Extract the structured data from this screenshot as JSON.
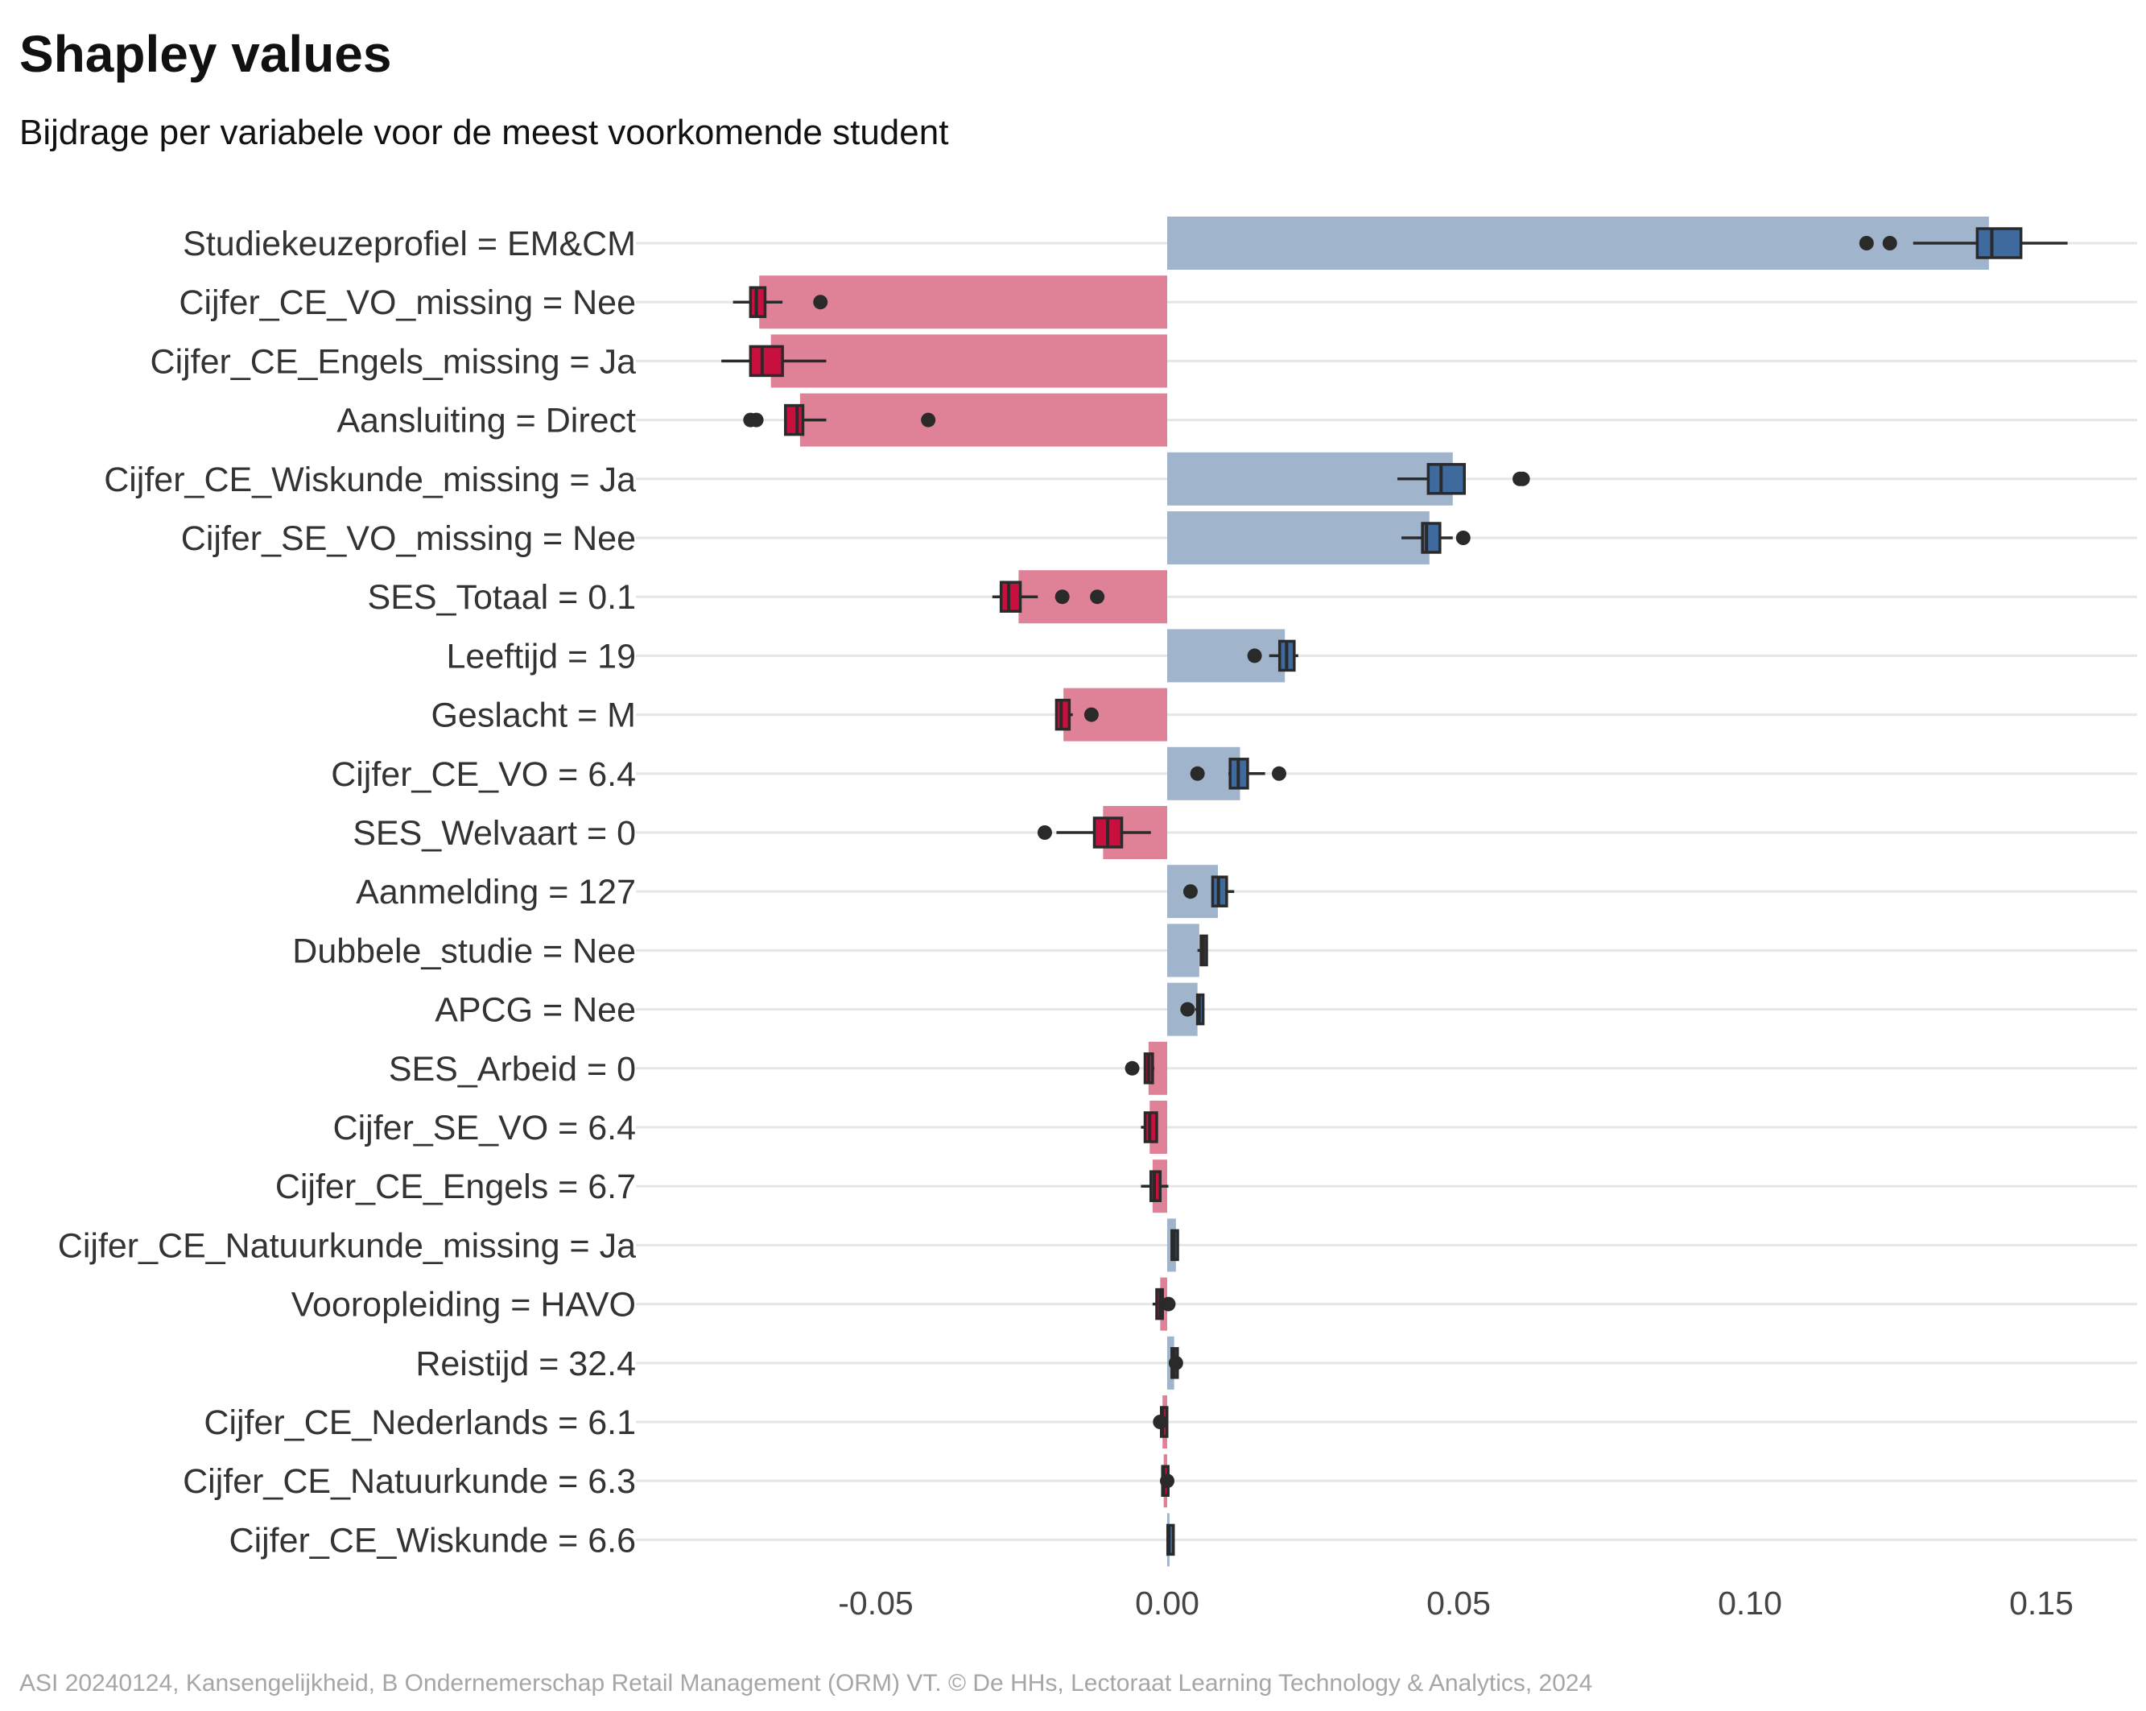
{
  "title": "Shapley values",
  "subtitle": "Bijdrage per variabele voor de meest voorkomende student",
  "caption": "ASI 20240124, Kansengelijkheid, B Ondernemerschap Retail Management (ORM) VT. © De HHs, Lectoraat Learning Technology & Analytics, 2024",
  "colors": {
    "positive_bar": "#a0b4cc",
    "negative_bar": "#e08297",
    "positive_box": "#3f6a9e",
    "negative_box": "#c8103e",
    "grid": "#e6e6e6",
    "outline": "#2a2a2a"
  },
  "chart_data": {
    "type": "bar",
    "orientation": "horizontal",
    "title": "Shapley values",
    "subtitle": "Bijdrage per variabele voor de meest voorkomende student",
    "xlabel": "",
    "ylabel": "",
    "xlim": [
      -0.09,
      0.165
    ],
    "xticks": [
      -0.05,
      0.0,
      0.05,
      0.1,
      0.15
    ],
    "xtick_labels": [
      "-0.05",
      "0.00",
      "0.05",
      "0.10",
      "0.15"
    ],
    "grid": "horizontal-major",
    "legend": "none",
    "rows": [
      {
        "label": "Studiekeuzeprofiel = EM&CM",
        "value": 0.141,
        "box": {
          "wlo": 0.128,
          "q1": 0.139,
          "med": 0.1415,
          "q3": 0.1465,
          "whi": 0.1545
        },
        "outliers": [
          0.12,
          0.124
        ]
      },
      {
        "label": "Cijfer_CE_VO_missing = Nee",
        "value": -0.07,
        "box": {
          "wlo": -0.0745,
          "q1": -0.0715,
          "med": -0.0705,
          "q3": -0.069,
          "whi": -0.066
        },
        "outliers": [
          -0.0595
        ]
      },
      {
        "label": "Cijfer_CE_Engels_missing = Ja",
        "value": -0.068,
        "box": {
          "wlo": -0.0765,
          "q1": -0.0715,
          "med": -0.0695,
          "q3": -0.066,
          "whi": -0.0585
        },
        "outliers": []
      },
      {
        "label": "Aansluiting = Direct",
        "value": -0.063,
        "box": {
          "wlo": -0.0655,
          "q1": -0.0655,
          "med": -0.0635,
          "q3": -0.0625,
          "whi": -0.0585
        },
        "outliers": [
          -0.0715,
          -0.0705,
          -0.041
        ]
      },
      {
        "label": "Cijfer_CE_Wiskunde_missing = Ja",
        "value": 0.049,
        "box": {
          "wlo": 0.0395,
          "q1": 0.0448,
          "med": 0.047,
          "q3": 0.051,
          "whi": 0.051
        },
        "outliers": [
          0.0605,
          0.061
        ]
      },
      {
        "label": "Cijfer_SE_VO_missing = Nee",
        "value": 0.045,
        "box": {
          "wlo": 0.0402,
          "q1": 0.0438,
          "med": 0.0445,
          "q3": 0.0468,
          "whi": 0.049
        },
        "outliers": [
          0.0508
        ]
      },
      {
        "label": "SES_Totaal = 0.1",
        "value": -0.0255,
        "box": {
          "wlo": -0.03,
          "q1": -0.0285,
          "med": -0.0272,
          "q3": -0.0252,
          "whi": -0.0222
        },
        "outliers": [
          -0.018,
          -0.012
        ]
      },
      {
        "label": "Leeftijd = 19",
        "value": 0.0202,
        "box": {
          "wlo": 0.0175,
          "q1": 0.0193,
          "med": 0.0205,
          "q3": 0.0218,
          "whi": 0.0225
        },
        "outliers": [
          0.015
        ]
      },
      {
        "label": "Geslacht = M",
        "value": -0.0178,
        "box": {
          "wlo": -0.019,
          "q1": -0.019,
          "med": -0.0182,
          "q3": -0.0168,
          "whi": -0.0162
        },
        "outliers": [
          -0.013
        ]
      },
      {
        "label": "Cijfer_CE_VO = 6.4",
        "value": 0.0125,
        "box": {
          "wlo": 0.0105,
          "q1": 0.0108,
          "med": 0.0122,
          "q3": 0.0138,
          "whi": 0.0168
        },
        "outliers": [
          0.0052,
          0.0192
        ]
      },
      {
        "label": "SES_Welvaart = 0",
        "value": -0.011,
        "box": {
          "wlo": -0.019,
          "q1": -0.0125,
          "med": -0.0102,
          "q3": -0.0078,
          "whi": -0.0028
        },
        "outliers": [
          -0.021
        ]
      },
      {
        "label": "Aanmelding = 127",
        "value": 0.0087,
        "box": {
          "wlo": 0.0078,
          "q1": 0.0078,
          "med": 0.0088,
          "q3": 0.0102,
          "whi": 0.0115
        },
        "outliers": [
          0.004
        ]
      },
      {
        "label": "Dubbele_studie = Nee",
        "value": 0.0055,
        "box": {
          "wlo": 0.0052,
          "q1": 0.0058,
          "med": 0.0062,
          "q3": 0.0065,
          "whi": 0.0068
        },
        "outliers": []
      },
      {
        "label": "APCG = Nee",
        "value": 0.0052,
        "box": {
          "wlo": 0.0048,
          "q1": 0.0052,
          "med": 0.0055,
          "q3": 0.0058,
          "whi": 0.0062
        },
        "outliers": [
          0.0035
        ]
      },
      {
        "label": "SES_Arbeid = 0",
        "value": -0.0032,
        "box": {
          "wlo": -0.004,
          "q1": -0.0038,
          "med": -0.0032,
          "q3": -0.0025,
          "whi": -0.0022
        },
        "outliers": [
          -0.006
        ]
      },
      {
        "label": "Cijfer_SE_VO = 6.4",
        "value": -0.003,
        "box": {
          "wlo": -0.0045,
          "q1": -0.0038,
          "med": -0.003,
          "q3": -0.0018,
          "whi": -0.0018
        },
        "outliers": []
      },
      {
        "label": "Cijfer_CE_Engels = 6.7",
        "value": -0.0025,
        "box": {
          "wlo": -0.0045,
          "q1": -0.0028,
          "med": -0.0022,
          "q3": -0.0012,
          "whi": 0.0002
        },
        "outliers": []
      },
      {
        "label": "Cijfer_CE_Natuurkunde_missing = Ja",
        "value": 0.0015,
        "box": {
          "wlo": 0.0008,
          "q1": 0.0008,
          "med": 0.0012,
          "q3": 0.0018,
          "whi": 0.002
        },
        "outliers": []
      },
      {
        "label": "Vooropleiding = HAVO",
        "value": -0.0012,
        "box": {
          "wlo": -0.0025,
          "q1": -0.0018,
          "med": -0.0012,
          "q3": -0.0008,
          "whi": -0.0002
        },
        "outliers": [
          0.0002
        ]
      },
      {
        "label": "Reistijd = 32.4",
        "value": 0.0012,
        "box": {
          "wlo": 0.0005,
          "q1": 0.0008,
          "med": 0.0012,
          "q3": 0.0015,
          "whi": 0.0018
        },
        "outliers": [
          0.0015
        ]
      },
      {
        "label": "Cijfer_CE_Nederlands = 6.1",
        "value": -0.0008,
        "box": {
          "wlo": -0.0012,
          "q1": -0.001,
          "med": -0.0008,
          "q3": -0.0005,
          "whi": -0.0003
        },
        "outliers": [
          -0.0012
        ]
      },
      {
        "label": "Cijfer_CE_Natuurkunde = 6.3",
        "value": -0.0006,
        "box": {
          "wlo": -0.001,
          "q1": -0.0008,
          "med": -0.0006,
          "q3": -0.0004,
          "whi": -0.0002
        },
        "outliers": [
          0.0
        ]
      },
      {
        "label": "Cijfer_CE_Wiskunde = 6.6",
        "value": 0.0004,
        "box": {
          "wlo": 0.0,
          "q1": 0.0001,
          "med": 0.0003,
          "q3": 0.0005,
          "whi": 0.0007
        },
        "outliers": []
      }
    ]
  }
}
